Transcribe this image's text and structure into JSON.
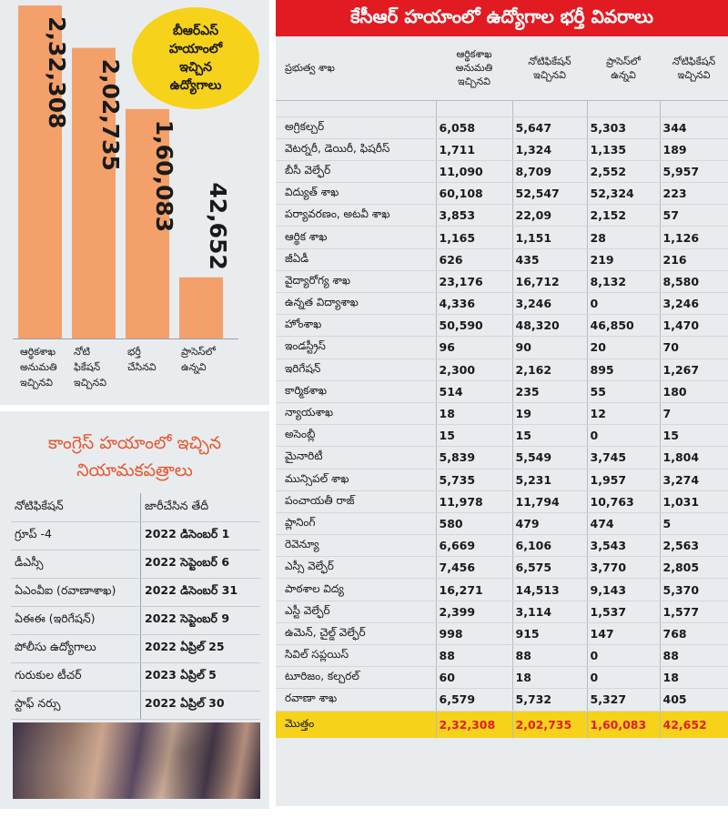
{
  "chart_data": {
    "type": "bar",
    "categories": [
      "ఆర్థికశాఖ అనుమతి ఇచ్చినవి",
      "నోటి ఫికేషన్ ఇచ్చినవి",
      "భర్తీ చేసినవి",
      "ప్రాసెస్‌లో ఉన్నవి"
    ],
    "category_lines": [
      [
        "ఆర్థికశాఖ",
        "అనుమతి",
        "ఇచ్చినవి"
      ],
      [
        "నోటి",
        "ఫికేషన్",
        "ఇచ్చినవి"
      ],
      [
        "భర్తీ",
        "చేసినవి"
      ],
      [
        "ప్రాసెస్‌లో",
        "ఉన్నవి"
      ]
    ],
    "values": [
      232308,
      202735,
      160083,
      42652
    ],
    "value_labels": [
      "2,32,308",
      "2,02,735",
      "1,60,083",
      "42,652"
    ],
    "ylim": [
      0,
      232308
    ],
    "title": "",
    "xlabel": "",
    "ylabel": "",
    "grid": false,
    "bar_color": "#f4a06b"
  },
  "bubble": {
    "text": "బీఆర్ఎస్\nహయాంలో\nఇచ్చిన\nఉద్యోగాలు"
  },
  "congress": {
    "title": "కాంగ్రెస్ హయాంలో ఇచ్చిన\nనియామకపత్రాలు",
    "headers": [
      "నోటిఫికేషన్",
      "జారీచేసిన తేదీ"
    ],
    "rows": [
      [
        "గ్రూప్ -4",
        "2022 డిసెంబర్ 1"
      ],
      [
        "డీఎస్సీ",
        "2022 సెప్టెంబర్ 6"
      ],
      [
        "ఏఎంవీఐ (రవాణాశాఖ)",
        "2022 డిసెంబర్ 31"
      ],
      [
        "ఏఈఈ (ఇరిగేషన్)",
        "2022 సెప్టెంబర్ 9"
      ],
      [
        "పోలీసు ఉద్యోగాలు",
        "2022 ఏప్రిల్ 25"
      ],
      [
        "గురుకుల టీచర్",
        "2023 ఏప్రిల్ 5"
      ],
      [
        "స్టాఫ్ నర్సు",
        "2022 ఏప్రిల్ 30"
      ]
    ]
  },
  "main": {
    "title": "కేసీఆర్ హయాంలో ఉద్యోగాల భర్తీ వివరాలు",
    "headers": [
      "ప్రభుత్వ శాఖ",
      "ఆర్థికశాఖ\nఅనుమతి\nఇచ్చినవి",
      "నోటిఫికేషన్\nఇచ్చినవి",
      "ప్రాసెస్‌లో\nఉన్నవి",
      "నోటిఫికేషన్\nఇచ్చినవి"
    ],
    "rows": [
      [
        "అగ్రికల్చర్",
        "6,058",
        "5,647",
        "5,303",
        "344"
      ],
      [
        "వెటర్నరీ, డెయిరీ, ఫిషరీస్",
        "1,711",
        "1,324",
        "1,135",
        "189"
      ],
      [
        "బీసీ వెల్ఫేర్",
        "11,090",
        "8,709",
        "2,552",
        "5,957"
      ],
      [
        "విద్యుత్ శాఖ",
        "60,108",
        "52,547",
        "52,324",
        "223"
      ],
      [
        "పర్యావరణం, అటవీ శాఖ",
        "3,853",
        "22,09",
        "2,152",
        "57"
      ],
      [
        "ఆర్థిక శాఖ",
        "1,165",
        "1,151",
        "28",
        "1,126"
      ],
      [
        "జీఏడీ",
        "626",
        "435",
        "219",
        "216"
      ],
      [
        "వైద్యారోగ్య శాఖ",
        "23,176",
        "16,712",
        "8,132",
        "8,580"
      ],
      [
        "ఉన్నత విద్యాశాఖ",
        "4,336",
        "3,246",
        "0",
        "3,246"
      ],
      [
        "హోంశాఖ",
        "50,590",
        "48,320",
        "46,850",
        "1,470"
      ],
      [
        "ఇండస్ట్రీస్",
        "96",
        "90",
        "20",
        "70"
      ],
      [
        "ఇరిగేషన్",
        "2,300",
        "2,162",
        "895",
        "1,267"
      ],
      [
        "కార్మికశాఖ",
        "514",
        "235",
        "55",
        "180"
      ],
      [
        "న్యాయశాఖ",
        "18",
        "19",
        "12",
        "7"
      ],
      [
        "అసెంబ్లీ",
        "15",
        "15",
        "0",
        "15"
      ],
      [
        "మైనారిటీ",
        "5,839",
        "5,549",
        "3,745",
        "1,804"
      ],
      [
        "మున్సిపల్ శాఖ",
        "5,735",
        "5,231",
        "1,957",
        "3,274"
      ],
      [
        "పంచాయతీ రాజ్",
        "11,978",
        "11,794",
        "10,763",
        "1,031"
      ],
      [
        "ప్లానింగ్",
        "580",
        "479",
        "474",
        "5"
      ],
      [
        "రెవెన్యూ",
        "6,669",
        "6,106",
        "3,543",
        "2,563"
      ],
      [
        "ఎస్సీ వెల్ఫేర్",
        "7,456",
        "6,575",
        "3,770",
        "2,805"
      ],
      [
        "పాఠశాల విద్య",
        "16,271",
        "14,513",
        "9,143",
        "5,370"
      ],
      [
        "ఎస్టీ వెల్ఫేర్",
        "2,399",
        "3,114",
        "1,537",
        "1,577"
      ],
      [
        "ఉమెన్, చైల్డ్ వెల్ఫేర్",
        "998",
        "915",
        "147",
        "768"
      ],
      [
        "సివిల్ సప్లయిస్",
        "88",
        "88",
        "0",
        "88"
      ],
      [
        "టూరిజం, కల్చరల్",
        "60",
        "18",
        "0",
        "18"
      ],
      [
        "రవాణా శాఖ",
        "6,579",
        "5,732",
        "5,327",
        "405"
      ]
    ],
    "total": [
      "మొత్తం",
      "2,32,308",
      "2,02,735",
      "1,60,083",
      "42,652"
    ]
  },
  "colors": {
    "red": "#e21b23",
    "yellow": "#f6d21a",
    "orange": "#e4572e",
    "bar": "#f4a06b",
    "panel": "#e9ecef"
  }
}
